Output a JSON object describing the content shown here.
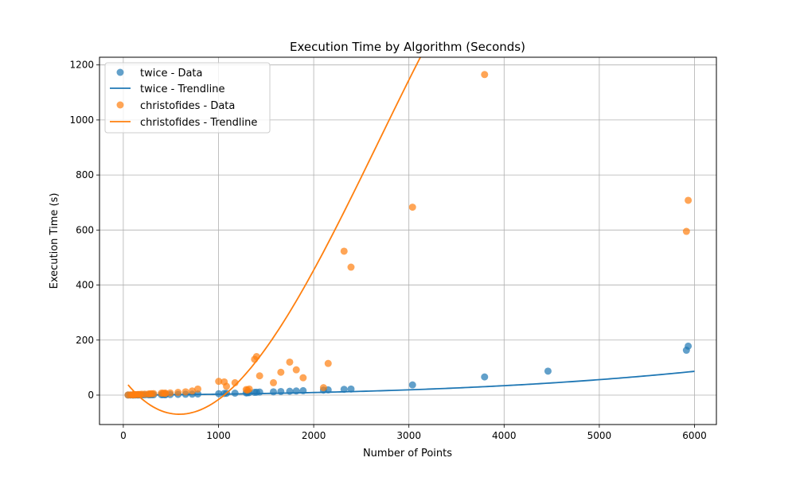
{
  "chart_data": {
    "type": "scatter",
    "title": "Execution Time by Algorithm (Seconds)",
    "xlabel": "Number of Points",
    "ylabel": "Execution Time (s)",
    "xlim": [
      -250,
      6230
    ],
    "ylim": [
      -107,
      1228
    ],
    "xticks": [
      0,
      1000,
      2000,
      3000,
      4000,
      5000,
      6000
    ],
    "yticks": [
      0,
      200,
      400,
      600,
      800,
      1000,
      1200
    ],
    "grid": true,
    "legend": "top-left",
    "legend_entries": [
      "twice - Data",
      "twice - Trendline",
      "christofides - Data",
      "christofides - Trendline"
    ],
    "series": [
      {
        "name": "twice - Data",
        "kind": "scatter",
        "color": "#1f77b4",
        "points": [
          [
            50,
            0.2
          ],
          [
            76,
            0.3
          ],
          [
            99,
            0.4
          ],
          [
            105,
            0.4
          ],
          [
            120,
            0.5
          ],
          [
            130,
            0.5
          ],
          [
            150,
            0.6
          ],
          [
            159,
            0.6
          ],
          [
            175,
            0.7
          ],
          [
            195,
            0.8
          ],
          [
            225,
            0.9
          ],
          [
            262,
            1.0
          ],
          [
            280,
            1.1
          ],
          [
            299,
            1.2
          ],
          [
            318,
            1.3
          ],
          [
            400,
            1.5
          ],
          [
            417,
            1.6
          ],
          [
            439,
            1.7
          ],
          [
            442,
            1.7
          ],
          [
            493,
            2
          ],
          [
            575,
            2.5
          ],
          [
            654,
            3
          ],
          [
            724,
            3.5
          ],
          [
            783,
            4
          ],
          [
            1002,
            5
          ],
          [
            1060,
            6
          ],
          [
            1084,
            6.5
          ],
          [
            1173,
            7
          ],
          [
            1291,
            8
          ],
          [
            1304,
            8.5
          ],
          [
            1323,
            9
          ],
          [
            1379,
            10
          ],
          [
            1400,
            10.5
          ],
          [
            1432,
            11
          ],
          [
            1577,
            12
          ],
          [
            1655,
            13
          ],
          [
            1748,
            14
          ],
          [
            1817,
            15
          ],
          [
            1889,
            16
          ],
          [
            2103,
            18
          ],
          [
            2152,
            19
          ],
          [
            2319,
            21
          ],
          [
            2392,
            22
          ],
          [
            3038,
            37
          ],
          [
            3795,
            66
          ],
          [
            4461,
            87
          ],
          [
            5915,
            163
          ],
          [
            5934,
            178
          ]
        ]
      },
      {
        "name": "twice - Trendline",
        "kind": "line",
        "color": "#1f77b4",
        "x": [
          50,
          6000
        ],
        "coefficients": [
          -0.5,
          0.0032,
          3.5e-07,
          2.55e-10
        ]
      },
      {
        "name": "christofides - Data",
        "kind": "scatter",
        "color": "#ff7f0e",
        "points": [
          [
            50,
            0.5
          ],
          [
            76,
            0.8
          ],
          [
            99,
            1.0
          ],
          [
            105,
            1.2
          ],
          [
            120,
            1.5
          ],
          [
            130,
            1.8
          ],
          [
            150,
            2
          ],
          [
            159,
            2.2
          ],
          [
            175,
            2.5
          ],
          [
            195,
            3
          ],
          [
            225,
            3.5
          ],
          [
            262,
            4
          ],
          [
            280,
            4.5
          ],
          [
            299,
            5
          ],
          [
            318,
            5.5
          ],
          [
            400,
            7
          ],
          [
            417,
            7
          ],
          [
            439,
            6
          ],
          [
            442,
            7
          ],
          [
            493,
            8
          ],
          [
            575,
            10
          ],
          [
            654,
            12
          ],
          [
            724,
            15
          ],
          [
            783,
            22
          ],
          [
            1002,
            50
          ],
          [
            1060,
            48
          ],
          [
            1084,
            32
          ],
          [
            1173,
            45
          ],
          [
            1291,
            20
          ],
          [
            1304,
            18
          ],
          [
            1323,
            22
          ],
          [
            1379,
            130
          ],
          [
            1400,
            140
          ],
          [
            1432,
            70
          ],
          [
            1577,
            45
          ],
          [
            1655,
            83
          ],
          [
            1748,
            120
          ],
          [
            1817,
            92
          ],
          [
            1889,
            63
          ],
          [
            2103,
            27
          ],
          [
            2152,
            115
          ],
          [
            2319,
            523
          ],
          [
            2392,
            465
          ],
          [
            3038,
            683
          ],
          [
            3795,
            1165
          ],
          [
            5915,
            595
          ],
          [
            5934,
            708
          ]
        ]
      },
      {
        "name": "christofides - Trendline",
        "kind": "line",
        "color": "#ff7f0e",
        "x": [
          50,
          5920
        ],
        "coefficients": [
          59.1,
          -0.456,
          0.000435,
          -5.41e-08
        ]
      }
    ]
  }
}
